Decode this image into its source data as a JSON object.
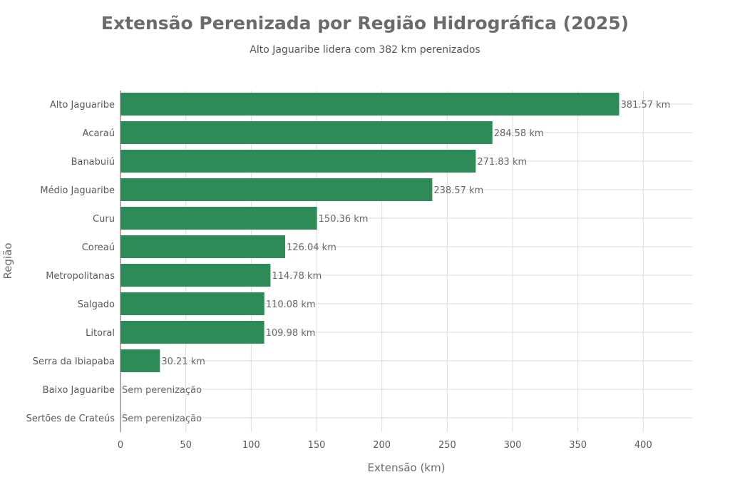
{
  "chart_data": {
    "type": "bar",
    "orientation": "horizontal",
    "title": "Extensão Perenizada por Região Hidrográfica (2025)",
    "subtitle": "Alto Jaguaribe lidera com 382 km perenizados",
    "xlabel": "Extensão (km)",
    "ylabel": "Região",
    "xlim": [
      0,
      438
    ],
    "xticks": [
      0,
      50,
      100,
      150,
      200,
      250,
      300,
      350,
      400
    ],
    "grid": true,
    "color": "#2e8b57",
    "categories": [
      "Alto Jaguaribe",
      "Acaraú",
      "Banabuiú",
      "Médio Jaguaribe",
      "Curu",
      "Coreaú",
      "Metropolitanas",
      "Salgado",
      "Litoral",
      "Serra da Ibiapaba",
      "Baixo Jaguaribe",
      "Sertões de Crateús"
    ],
    "values": [
      381.57,
      284.58,
      271.83,
      238.57,
      150.36,
      126.04,
      114.78,
      110.08,
      109.98,
      30.21,
      0,
      0
    ],
    "labels": [
      "381.57 km",
      "284.58 km",
      "271.83 km",
      "238.57 km",
      "150.36 km",
      "126.04 km",
      "114.78 km",
      "110.08 km",
      "109.98 km",
      "30.21 km",
      "Sem perenização",
      "Sem perenização"
    ]
  }
}
